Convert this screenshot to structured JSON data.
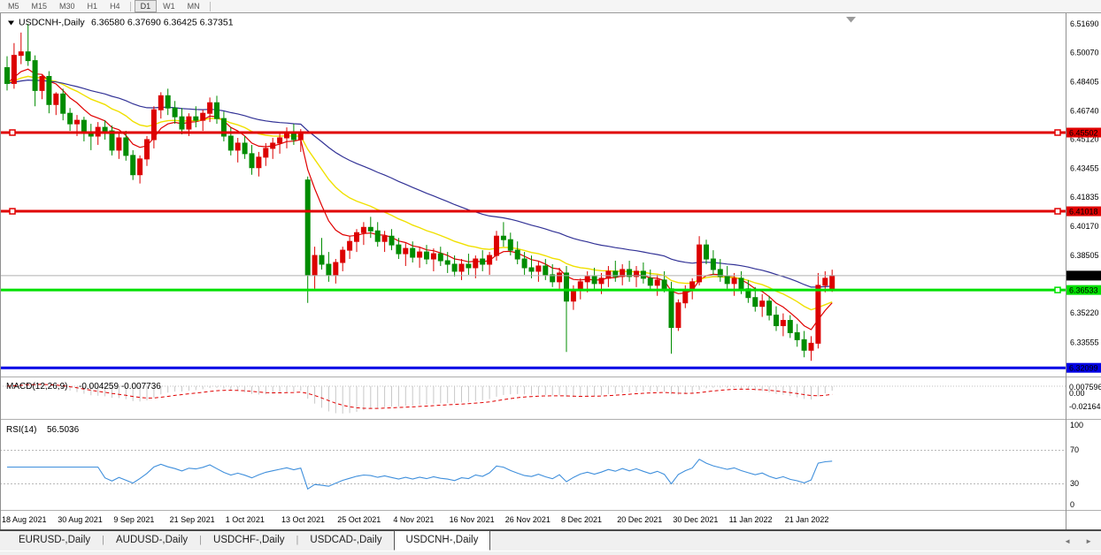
{
  "toolbar": {
    "timeframes": [
      "M5",
      "M15",
      "M30",
      "H1",
      "H4",
      "D1",
      "W1",
      "MN"
    ],
    "active": "D1"
  },
  "chart": {
    "title": "USDCNH-,Daily",
    "ohlc_text": "6.36580 6.37690 6.36425 6.37351"
  },
  "colors": {
    "up": "#dc0000",
    "down": "#008c00",
    "hline_red": "#e00000",
    "hline_green": "#00e000",
    "hline_blue": "#0000e6",
    "current_price_line": "#b0b0b0",
    "ma_fast": "#e00000",
    "ma_mid": "#f0e000",
    "ma_slow": "#323296",
    "macd_histogram": "#c8c8c8",
    "macd_signal": "#e00000",
    "rsi_line": "#3f8fdc"
  },
  "chart_data": {
    "type": "candlestick",
    "symbol": "USDCNH-",
    "timeframe": "Daily",
    "current_bar": {
      "open": 6.3658,
      "high": 6.3769,
      "low": 6.36425,
      "close": 6.37351
    },
    "x_labels": [
      {
        "text": "18 Aug 2021",
        "index": 0
      },
      {
        "text": "30 Aug 2021",
        "index": 8
      },
      {
        "text": "9 Sep 2021",
        "index": 16
      },
      {
        "text": "21 Sep 2021",
        "index": 24
      },
      {
        "text": "1 Oct 2021",
        "index": 32
      },
      {
        "text": "13 Oct 2021",
        "index": 40
      },
      {
        "text": "25 Oct 2021",
        "index": 48
      },
      {
        "text": "4 Nov 2021",
        "index": 56
      },
      {
        "text": "16 Nov 2021",
        "index": 64
      },
      {
        "text": "26 Nov 2021",
        "index": 72
      },
      {
        "text": "8 Dec 2021",
        "index": 80
      },
      {
        "text": "20 Dec 2021",
        "index": 88
      },
      {
        "text": "30 Dec 2021",
        "index": 96
      },
      {
        "text": "11 Jan 2022",
        "index": 104
      },
      {
        "text": "21 Jan 2022",
        "index": 112
      }
    ],
    "open": [
      6.492,
      6.483,
      6.499,
      6.501,
      6.496,
      6.479,
      6.487,
      6.471,
      6.477,
      6.466,
      6.46,
      6.462,
      6.455,
      6.453,
      6.458,
      6.456,
      6.445,
      6.452,
      6.442,
      6.431,
      6.44,
      6.451,
      6.468,
      6.476,
      6.469,
      6.464,
      6.457,
      6.464,
      6.462,
      6.466,
      6.472,
      6.463,
      6.453,
      6.445,
      6.449,
      6.443,
      6.435,
      6.441,
      6.446,
      6.449,
      6.452,
      6.455,
      6.451,
      6.428,
      6.374,
      6.385,
      6.38,
      6.374,
      6.381,
      6.388,
      6.393,
      6.398,
      6.401,
      6.399,
      6.393,
      6.396,
      6.391,
      6.386,
      6.389,
      6.384,
      6.387,
      6.383,
      6.386,
      6.382,
      6.38,
      6.376,
      6.38,
      6.378,
      6.383,
      6.38,
      6.385,
      6.396,
      6.394,
      6.388,
      6.383,
      6.378,
      6.376,
      6.379,
      6.374,
      6.37,
      6.375,
      6.359,
      6.365,
      6.37,
      6.373,
      6.369,
      6.372,
      6.376,
      6.373,
      6.377,
      6.373,
      6.376,
      6.372,
      6.368,
      6.371,
      6.366,
      6.344,
      6.358,
      6.365,
      6.37,
      6.391,
      6.383,
      6.377,
      6.373,
      6.369,
      6.372,
      6.366,
      6.361,
      6.356,
      6.359,
      6.351,
      6.345,
      6.348,
      6.341,
      6.337,
      6.331,
      6.335,
      6.368,
      6.3658
    ],
    "high": [
      6.4985,
      6.506,
      6.512,
      6.517,
      6.499,
      6.488,
      6.49,
      6.478,
      6.48,
      6.469,
      6.465,
      6.464,
      6.46,
      6.461,
      6.462,
      6.459,
      6.455,
      6.456,
      6.445,
      6.442,
      6.453,
      6.47,
      6.478,
      6.48,
      6.473,
      6.469,
      6.466,
      6.47,
      6.468,
      6.475,
      6.476,
      6.467,
      6.458,
      6.452,
      6.453,
      6.448,
      6.444,
      6.449,
      6.452,
      6.455,
      6.458,
      6.46,
      6.457,
      6.43,
      6.39,
      6.395,
      6.387,
      6.383,
      6.39,
      6.396,
      6.4,
      6.404,
      6.407,
      6.404,
      6.399,
      6.4,
      6.395,
      6.392,
      6.393,
      6.39,
      6.391,
      6.389,
      6.39,
      6.387,
      6.385,
      6.383,
      6.386,
      6.385,
      6.388,
      6.387,
      6.399,
      6.404,
      6.398,
      6.393,
      6.387,
      6.385,
      6.382,
      6.383,
      6.38,
      6.378,
      6.379,
      6.368,
      6.372,
      6.376,
      6.378,
      6.375,
      6.379,
      6.382,
      6.38,
      6.382,
      6.379,
      6.381,
      6.377,
      6.374,
      6.376,
      6.37,
      6.36,
      6.368,
      6.372,
      6.396,
      6.394,
      6.388,
      6.383,
      6.379,
      6.375,
      6.376,
      6.371,
      6.367,
      6.363,
      6.362,
      6.356,
      6.352,
      6.351,
      6.346,
      6.342,
      6.339,
      6.375,
      6.376,
      6.3769
    ],
    "low": [
      6.479,
      6.48,
      6.494,
      6.493,
      6.47,
      6.474,
      6.466,
      6.465,
      6.462,
      6.456,
      6.453,
      6.45,
      6.445,
      6.448,
      6.451,
      6.442,
      6.44,
      6.439,
      6.428,
      6.426,
      6.436,
      6.446,
      6.463,
      6.465,
      6.46,
      6.454,
      6.453,
      6.458,
      6.456,
      6.461,
      6.46,
      6.45,
      6.442,
      6.438,
      6.44,
      6.431,
      6.43,
      6.436,
      6.44,
      6.443,
      6.446,
      6.448,
      6.444,
      6.358,
      6.366,
      6.377,
      6.37,
      6.369,
      6.376,
      6.383,
      6.387,
      6.391,
      6.395,
      6.39,
      6.387,
      6.388,
      6.383,
      6.379,
      6.381,
      6.378,
      6.38,
      6.376,
      6.379,
      6.375,
      6.373,
      6.371,
      6.374,
      6.372,
      6.376,
      6.374,
      6.382,
      6.39,
      6.385,
      6.38,
      6.374,
      6.372,
      6.37,
      6.371,
      6.367,
      6.366,
      6.33,
      6.354,
      6.36,
      6.364,
      6.366,
      6.363,
      6.367,
      6.37,
      6.368,
      6.37,
      6.367,
      6.369,
      6.365,
      6.362,
      6.364,
      6.329,
      6.342,
      6.355,
      6.36,
      6.368,
      6.38,
      6.374,
      6.37,
      6.366,
      6.362,
      6.363,
      6.358,
      6.353,
      6.35,
      6.348,
      6.342,
      6.339,
      6.338,
      6.333,
      6.327,
      6.325,
      6.332,
      6.364,
      6.36425
    ],
    "close": [
      6.483,
      6.499,
      6.501,
      6.496,
      6.479,
      6.487,
      6.471,
      6.477,
      6.466,
      6.46,
      6.462,
      6.455,
      6.453,
      6.458,
      6.456,
      6.445,
      6.452,
      6.442,
      6.431,
      6.44,
      6.451,
      6.468,
      6.476,
      6.469,
      6.464,
      6.457,
      6.464,
      6.462,
      6.466,
      6.472,
      6.463,
      6.453,
      6.445,
      6.449,
      6.443,
      6.435,
      6.441,
      6.446,
      6.449,
      6.452,
      6.455,
      6.451,
      6.454,
      6.374,
      6.385,
      6.38,
      6.374,
      6.381,
      6.388,
      6.393,
      6.398,
      6.401,
      6.399,
      6.393,
      6.396,
      6.391,
      6.386,
      6.389,
      6.384,
      6.387,
      6.383,
      6.386,
      6.382,
      6.38,
      6.376,
      6.38,
      6.378,
      6.383,
      6.38,
      6.385,
      6.396,
      6.394,
      6.388,
      6.383,
      6.378,
      6.376,
      6.379,
      6.374,
      6.37,
      6.375,
      6.359,
      6.365,
      6.37,
      6.373,
      6.369,
      6.372,
      6.376,
      6.373,
      6.377,
      6.373,
      6.376,
      6.372,
      6.368,
      6.371,
      6.366,
      6.344,
      6.358,
      6.365,
      6.37,
      6.391,
      6.383,
      6.377,
      6.373,
      6.369,
      6.372,
      6.366,
      6.361,
      6.356,
      6.359,
      6.351,
      6.345,
      6.348,
      6.341,
      6.337,
      6.331,
      6.335,
      6.368,
      6.372,
      6.37351
    ],
    "y_axis_labels": [
      {
        "text": "6.51690",
        "price": 6.5169
      },
      {
        "text": "6.50070",
        "price": 6.5007
      },
      {
        "text": "6.48405",
        "price": 6.48405
      },
      {
        "text": "6.46740",
        "price": 6.4674
      },
      {
        "text": "6.45120",
        "price": 6.4512
      },
      {
        "text": "6.43455",
        "price": 6.43455
      },
      {
        "text": "6.41835",
        "price": 6.41835
      },
      {
        "text": "6.40170",
        "price": 6.4017
      },
      {
        "text": "6.38505",
        "price": 6.38505
      },
      {
        "text": "6.35220",
        "price": 6.3522
      },
      {
        "text": "6.33555",
        "price": 6.33555
      }
    ],
    "price_badges": [
      {
        "text": "6.45502",
        "price": 6.45502,
        "bg": "#e00000",
        "fg": "#ffffff"
      },
      {
        "text": "6.41018",
        "price": 6.41018,
        "bg": "#e00000",
        "fg": "#ffffff"
      },
      {
        "text": "6.37351",
        "price": 6.37351,
        "bg": "#000000",
        "fg": "#ffffff"
      },
      {
        "text": "6.36533",
        "price": 6.36533,
        "bg": "#00e000",
        "fg": "#000000"
      },
      {
        "text": "6.32099",
        "price": 6.32099,
        "bg": "#0000e6",
        "fg": "#ffffff"
      }
    ],
    "hlines": [
      {
        "price": 6.45502,
        "color": "#e00000",
        "width": 3,
        "handles": "both"
      },
      {
        "price": 6.41018,
        "color": "#e00000",
        "width": 3,
        "handles": "both"
      },
      {
        "price": 6.36533,
        "color": "#00e000",
        "width": 3,
        "handles": "right"
      },
      {
        "price": 6.32099,
        "color": "#0000e6",
        "width": 3,
        "handles": "none"
      }
    ],
    "current_price": 6.37351,
    "overlays": [
      {
        "name": "ma-fast",
        "type": "ema",
        "period": 8,
        "color": "#e00000"
      },
      {
        "name": "ma-mid",
        "type": "ema",
        "period": 20,
        "color": "#f0e000"
      },
      {
        "name": "ma-slow",
        "type": "ema",
        "period": 45,
        "color": "#323296"
      }
    ]
  },
  "indicators": {
    "macd": {
      "label": "MACD(12,26,9)",
      "values_text": "-0.004259 -0.007736",
      "axis_labels": [
        "0.007596",
        "0.00",
        "-0.02164"
      ]
    },
    "rsi": {
      "label": "RSI(14)",
      "value_text": "56.5036",
      "axis_labels": [
        "100",
        "70",
        "30",
        "0"
      ],
      "levels": [
        70,
        30
      ]
    }
  },
  "tabs": {
    "items": [
      "EURUSD-,Daily",
      "AUDUSD-,Daily",
      "USDCHF-,Daily",
      "USDCAD-,Daily",
      "USDCNH-,Daily"
    ],
    "active": "USDCNH-,Daily",
    "scroll_left": "◄",
    "scroll_right": "►"
  }
}
